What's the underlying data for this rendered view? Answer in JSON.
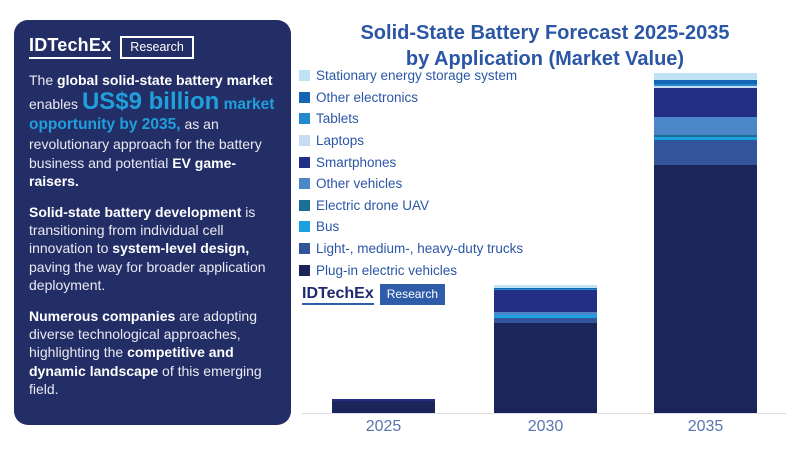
{
  "panel": {
    "logo": {
      "brand": "IDTechEx",
      "suffix": "Research"
    },
    "p1": [
      "The ",
      "global solid-state battery market",
      " enables ",
      "US$9 billion",
      " market opportunity by 2035,",
      " as an revolutionary approach for the battery business and potential ",
      "EV game-raisers."
    ],
    "p2": [
      "Solid-state battery development",
      " is transitioning from individual cell innovation to ",
      "system-level design,",
      " paving the way for broader application deployment."
    ],
    "p3": [
      "Numerous companies",
      " are adopting diverse technological approaches, highlighting the ",
      "competitive and dynamic landscape",
      " of this emerging field."
    ]
  },
  "title": {
    "line1": "Solid-State Battery Forecast 2025-2035",
    "line2": "by Application (Market Value)"
  },
  "chart_logo": {
    "brand": "IDTechEx",
    "suffix": "Research"
  },
  "colors": {
    "panel_bg": "#232d66",
    "accent_cyan": "#1fa0dc",
    "title_blue": "#2b56a5",
    "axis_label": "#5b74ad",
    "logo_box_blue": "#2e5ca8"
  },
  "chart_data": {
    "type": "bar",
    "stacked": true,
    "title": "Solid-State Battery Forecast 2025-2035 by Application (Market Value)",
    "unit": "US$ billion",
    "categories": [
      "2025",
      "2030",
      "2035"
    ],
    "series": [
      {
        "name": "Stationary energy storage system",
        "color": "#bfe3f5",
        "values": [
          0,
          0.08,
          0.19
        ]
      },
      {
        "name": "Other electronics",
        "color": "#1565b5",
        "values": [
          0,
          0.05,
          0.11
        ]
      },
      {
        "name": "Tablets",
        "color": "#2488cf",
        "values": [
          0,
          0.015,
          0.05
        ]
      },
      {
        "name": "Laptops",
        "color": "#c6dcf2",
        "values": [
          0,
          0.01,
          0.04
        ]
      },
      {
        "name": "Smartphones",
        "color": "#232f85",
        "values": [
          0.04,
          0.57,
          0.78
        ]
      },
      {
        "name": "Other vehicles",
        "color": "#4a86c8",
        "values": [
          0,
          0.07,
          0.48
        ]
      },
      {
        "name": "Electric drone UAV",
        "color": "#1b6f96",
        "values": [
          0,
          0.015,
          0.04
        ]
      },
      {
        "name": "Bus",
        "color": "#1ba0e1",
        "values": [
          0,
          0.08,
          0.08
        ]
      },
      {
        "name": "Light-, medium-, heavy-duty trucks",
        "color": "#31549b",
        "values": [
          0,
          0.12,
          0.67
        ]
      },
      {
        "name": "Plug-in electric vehicles",
        "color": "#1b2559",
        "values": [
          0.33,
          2.39,
          6.56
        ]
      }
    ],
    "totals": [
      0.37,
      3.4,
      9.0
    ],
    "xlabel": "",
    "ylabel": "",
    "legend_position": "left",
    "grid": false,
    "note": "stack order top-to-bottom matches series order; values estimated from bar heights, 2035 total anchored to US$9 billion"
  }
}
